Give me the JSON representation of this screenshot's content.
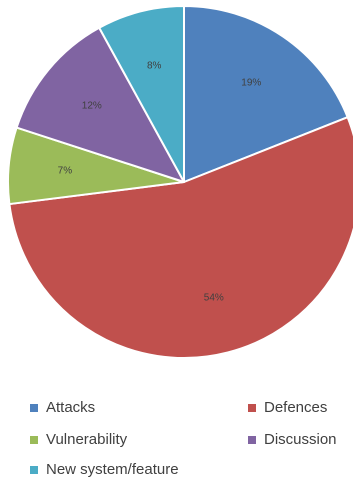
{
  "chart_data": {
    "type": "pie",
    "categories": [
      "Attacks",
      "Defences",
      "Vulnerability",
      "Discussion",
      "New system/feature"
    ],
    "values": [
      19,
      54,
      7,
      12,
      8
    ],
    "labels": [
      "19%",
      "54%",
      "7%",
      "12%",
      "8%"
    ],
    "colors": [
      "#4f81bd",
      "#c0504d",
      "#9bbb59",
      "#8064a2",
      "#4bacc6"
    ],
    "start": "top",
    "direction": "clockwise",
    "legend_position": "bottom"
  }
}
